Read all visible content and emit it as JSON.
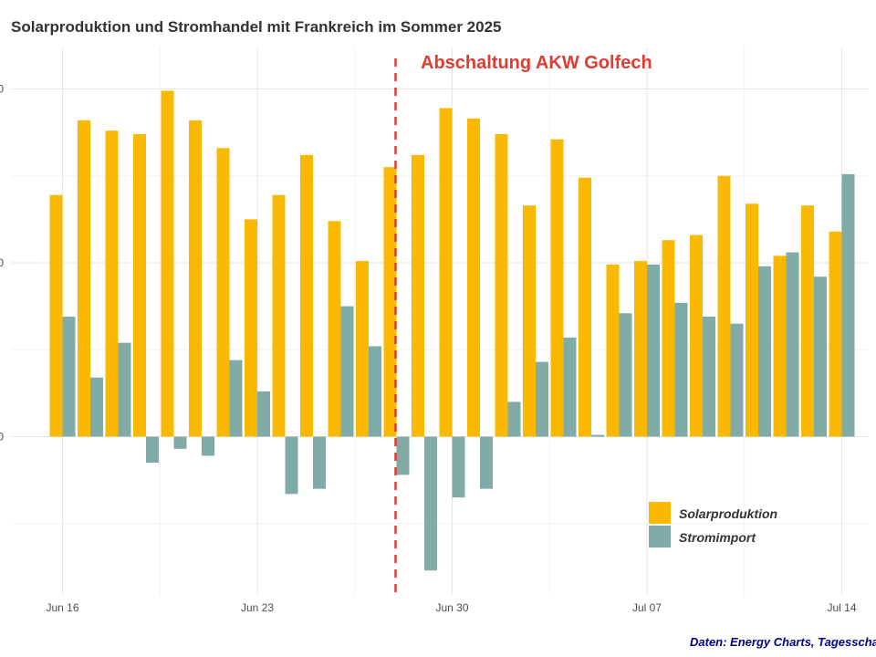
{
  "title": "Solarproduktion und Stromhandel mit Frankreich im Sommer 2025",
  "caption": "Daten: Energy Charts, Tagesschau",
  "chart_data": {
    "type": "bar",
    "x_tick_labels": [
      "Jun 16",
      "Jun 23",
      "Jun 30",
      "Jul 07",
      "Jul 14"
    ],
    "y_tick_labels": [
      "0",
      "0",
      "0"
    ],
    "ylim": [
      -0.9,
      2.25
    ],
    "grid": true,
    "legend_position": "bottom-right",
    "colors": {
      "Solarproduktion": "#fbb800",
      "Stromimport": "#80aba6",
      "annotation": "#e03c31"
    },
    "categories": [
      "Jun 16",
      "Jun 17",
      "Jun 18",
      "Jun 19",
      "Jun 20",
      "Jun 21",
      "Jun 22",
      "Jun 23",
      "Jun 24",
      "Jun 25",
      "Jun 26",
      "Jun 27",
      "Jun 28",
      "Jun 29",
      "Jun 30",
      "Jul 01",
      "Jul 02",
      "Jul 03",
      "Jul 04",
      "Jul 05",
      "Jul 06",
      "Jul 07",
      "Jul 08",
      "Jul 09",
      "Jul 10",
      "Jul 11",
      "Jul 12",
      "Jul 13",
      "Jul 14"
    ],
    "series": [
      {
        "name": "Solarproduktion",
        "values": [
          1.39,
          1.82,
          1.76,
          1.74,
          1.99,
          1.82,
          1.66,
          1.25,
          1.39,
          1.62,
          1.24,
          1.01,
          1.55,
          1.62,
          1.89,
          1.83,
          1.74,
          1.33,
          1.71,
          1.49,
          0.99,
          1.01,
          1.13,
          1.16,
          1.5,
          1.34,
          1.04,
          1.33,
          1.18
        ]
      },
      {
        "name": "Stromimport",
        "values": [
          0.69,
          0.34,
          0.54,
          -0.15,
          -0.07,
          -0.11,
          0.44,
          0.26,
          -0.33,
          -0.3,
          0.75,
          0.52,
          -0.22,
          -0.77,
          -0.35,
          -0.3,
          0.2,
          0.43,
          0.57,
          0.01,
          0.71,
          0.99,
          0.77,
          0.69,
          0.65,
          0.98,
          1.06,
          0.92,
          1.51
        ]
      }
    ],
    "annotations": [
      {
        "text": "Abschaltung AKW Golfech",
        "x": "Jun 28 / Jun 29",
        "style": "red dashed vertical line"
      }
    ]
  }
}
